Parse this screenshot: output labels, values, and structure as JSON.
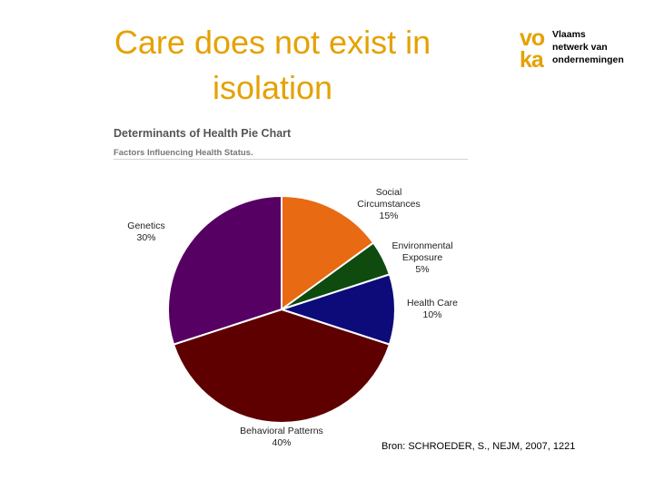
{
  "slide": {
    "title_line1": "Care does not exist in",
    "title_line2": "isolation",
    "source": "Bron: SCHROEDER, S., NEJM, 2007, 1221"
  },
  "logo": {
    "mark_line1": "vo",
    "mark_line2": "ka",
    "text_line1": "Vlaams",
    "text_line2": "netwerk van",
    "text_line3": "ondernemingen",
    "color": "#e5a100"
  },
  "chart_data": {
    "type": "pie",
    "title": "Determinants of Health Pie Chart",
    "subtitle": "Factors Influencing Health Status.",
    "slices": [
      {
        "name": "Social Circumstances",
        "label_lines": [
          "Social",
          "Circumstances"
        ],
        "value": 15,
        "value_label": "15%",
        "color": "#e86a12"
      },
      {
        "name": "Environmental Exposure",
        "label_lines": [
          "Environmental",
          "Exposure"
        ],
        "value": 5,
        "value_label": "5%",
        "color": "#0f4a0f"
      },
      {
        "name": "Health Care",
        "label_lines": [
          "Health Care"
        ],
        "value": 10,
        "value_label": "10%",
        "color": "#0d0a7a"
      },
      {
        "name": "Behavioral Patterns",
        "label_lines": [
          "Behavioral Patterns"
        ],
        "value": 40,
        "value_label": "40%",
        "color": "#5e0000"
      },
      {
        "name": "Genetics",
        "label_lines": [
          "Genetics"
        ],
        "value": 30,
        "value_label": "30%",
        "color": "#560063"
      }
    ]
  }
}
